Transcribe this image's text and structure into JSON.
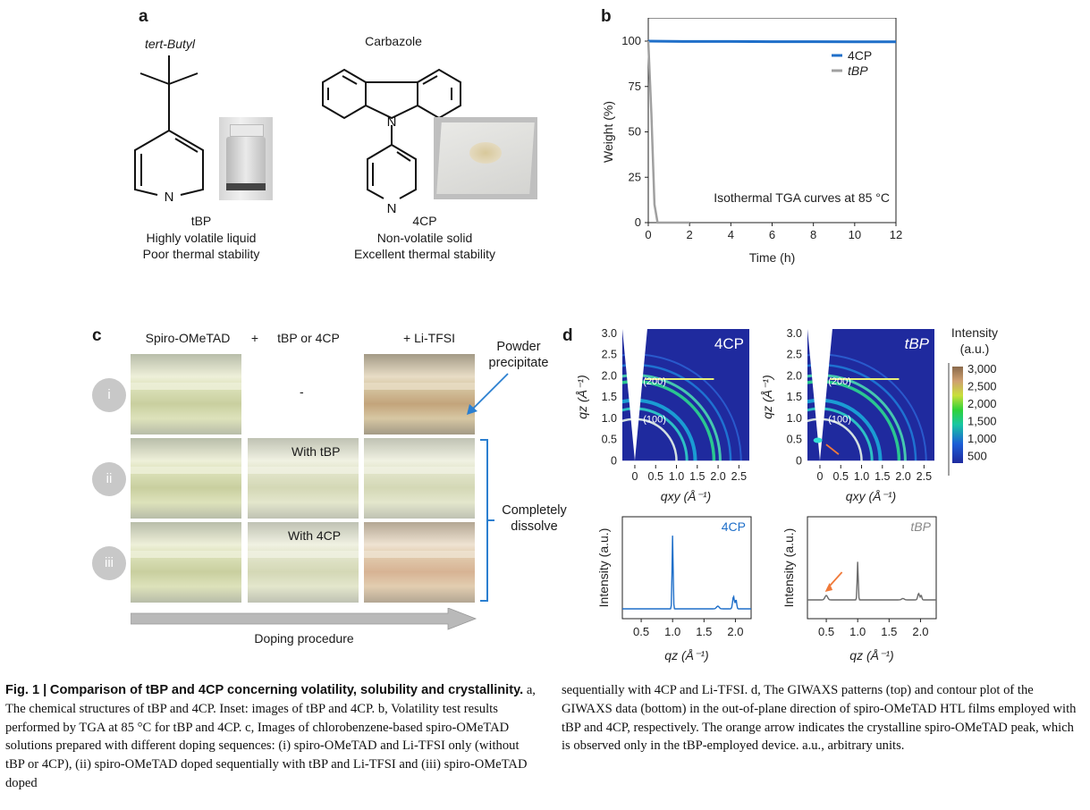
{
  "panel_a": {
    "letter": "a",
    "tbp_heading": "tert-Butyl",
    "tbp_n": "N",
    "tbp_name": "tBP",
    "tbp_desc1": "Highly volatile liquid",
    "tbp_desc2": "Poor thermal stability",
    "cp_heading": "Carbazole",
    "cp_n1": "N",
    "cp_n2": "N",
    "cp_name": "4CP",
    "cp_desc1": "Non-volatile solid",
    "cp_desc2": "Excellent thermal stability"
  },
  "panel_b": {
    "letter": "b",
    "chart_data": {
      "type": "line",
      "xlabel": "Time (h)",
      "ylabel": "Weight (%)",
      "xlim": [
        0,
        12
      ],
      "ylim": [
        0,
        100
      ],
      "xticks": [
        "0",
        "2",
        "4",
        "6",
        "8",
        "10",
        "12"
      ],
      "yticks": [
        "0",
        "25",
        "50",
        "75",
        "100"
      ],
      "annotation": "Isothermal TGA curves at 85 °C",
      "legend_position": "top-right",
      "series": [
        {
          "name": "4CP",
          "color": "#1f6fc9",
          "x": [
            0,
            2,
            4,
            6,
            8,
            10,
            12
          ],
          "y": [
            100,
            99.8,
            99.8,
            99.7,
            99.7,
            99.6,
            99.6
          ]
        },
        {
          "name": "tBP",
          "color": "#a0a0a0",
          "x": [
            0,
            0.15,
            0.3,
            0.45,
            1,
            2
          ],
          "y": [
            100,
            60,
            10,
            0,
            0,
            0
          ]
        }
      ]
    }
  },
  "panel_c": {
    "letter": "c",
    "col1": "Spiro-OMeTAD",
    "plus": "+",
    "col2": "tBP or 4CP",
    "col3": "+ Li-TFSI",
    "dash": "-",
    "rows": [
      "i",
      "ii",
      "iii"
    ],
    "with_tbp": "With tBP",
    "with_4cp": "With 4CP",
    "powder1": "Powder",
    "powder2": "precipitate",
    "dissolve1": "Completely",
    "dissolve2": "dissolve",
    "procedure": "Doping procedure"
  },
  "panel_d": {
    "letter": "d",
    "map_4cp_label": "4CP",
    "map_tbp_label": "tBP",
    "peak200": "(200)",
    "peak100": "(100)",
    "xlabel_map": "qxy (Å⁻¹)",
    "ylabel_map": "qz (Å⁻¹)",
    "map_xticks": [
      "0",
      "0.5",
      "1.0",
      "1.5",
      "2.0",
      "2.5"
    ],
    "map_yticks": [
      "0",
      "0.5",
      "1.0",
      "1.5",
      "2.0",
      "2.5",
      "3.0"
    ],
    "colorbar_title1": "Intensity",
    "colorbar_title2": "(a.u.)",
    "colorbar_ticks": [
      "3,000",
      "2,500",
      "2,000",
      "1,500",
      "1,000",
      "500"
    ],
    "line_ylabel": "Intensity (a.u.)",
    "line_xlabel": "qz (Å⁻¹)",
    "line_xticks": [
      "0.5",
      "1.0",
      "1.5",
      "2.0"
    ],
    "line_4cp_label": "4CP",
    "line_tbp_label": "tBP"
  },
  "caption": {
    "fig_label": "Fig. 1 |",
    "title": "Comparison of tBP and 4CP concerning volatility, solubility and crystallinity.",
    "left_text": "a, The chemical structures of tBP and 4CP. Inset: images of tBP and 4CP. b, Volatility test results performed by TGA at 85 °C for tBP and 4CP. c, Images of chlorobenzene-based spiro-OMeTAD solutions prepared with different doping sequences: (i) spiro-OMeTAD and Li-TFSI only (without tBP or 4CP), (ii) spiro-OMeTAD doped sequentially with tBP and Li-TFSI and (iii) spiro-OMeTAD doped",
    "right_text": "sequentially with 4CP and Li-TFSI. d, The GIWAXS patterns (top) and contour plot of the GIWAXS data (bottom) in the out-of-plane direction of spiro-OMeTAD HTL films employed with tBP and 4CP, respectively. The orange arrow indicates the crystalline spiro-OMeTAD peak, which is observed only in the tBP-employed device. a.u., arbitrary units."
  }
}
